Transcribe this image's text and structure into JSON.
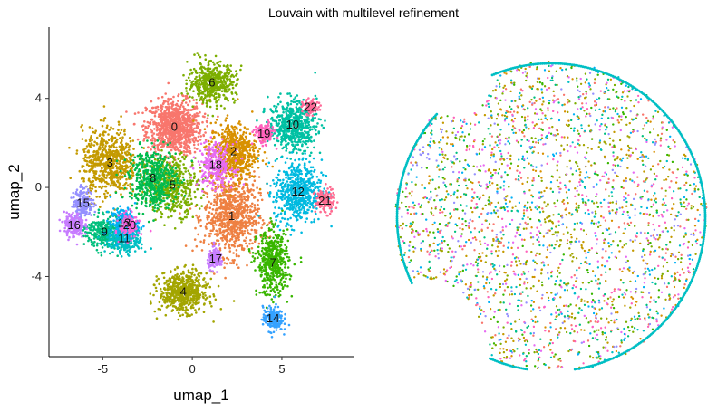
{
  "chart_data": {
    "title": "Louvain with multilevel refinement",
    "panels": [
      {
        "type": "scatter",
        "xlabel": "umap_1",
        "ylabel": "umap_2",
        "xlim": [
          -8,
          9
        ],
        "ylim": [
          -7.6,
          7.2
        ],
        "xticks": [
          -5,
          0,
          5
        ],
        "xtick_labels": [
          "-5",
          "0",
          "5"
        ],
        "yticks": [
          -4,
          0,
          4
        ],
        "ytick_labels": [
          "-4",
          "0",
          "4"
        ],
        "grid": false,
        "legend": "none",
        "clusters": [
          {
            "label": "0",
            "x": -1.0,
            "y": 2.7,
            "sx": 1.4,
            "sy": 1.1,
            "color": "#F8766D",
            "n": 900
          },
          {
            "label": "1",
            "x": 2.2,
            "y": -1.3,
            "sx": 1.4,
            "sy": 1.6,
            "color": "#EE8042",
            "n": 800
          },
          {
            "label": "2",
            "x": 2.3,
            "y": 1.6,
            "sx": 1.2,
            "sy": 1.2,
            "color": "#D89000",
            "n": 600
          },
          {
            "label": "3",
            "x": -4.6,
            "y": 1.1,
            "sx": 1.4,
            "sy": 1.4,
            "color": "#C49A00",
            "n": 650
          },
          {
            "label": "4",
            "x": -0.5,
            "y": -4.7,
            "sx": 1.2,
            "sy": 0.8,
            "color": "#A3A500",
            "n": 600
          },
          {
            "label": "5",
            "x": -1.1,
            "y": 0.1,
            "sx": 1.3,
            "sy": 1.2,
            "color": "#7CAE00",
            "n": 450
          },
          {
            "label": "6",
            "x": 1.1,
            "y": 4.7,
            "sx": 1.2,
            "sy": 0.8,
            "color": "#7CAE00",
            "n": 500
          },
          {
            "label": "7",
            "x": 4.5,
            "y": -3.4,
            "sx": 0.8,
            "sy": 1.3,
            "color": "#39B600",
            "n": 500
          },
          {
            "label": "8",
            "x": -2.2,
            "y": 0.4,
            "sx": 1.2,
            "sy": 1.2,
            "color": "#00BB4E",
            "n": 500
          },
          {
            "label": "9",
            "x": -4.9,
            "y": -2.0,
            "sx": 0.9,
            "sy": 0.7,
            "color": "#00BF7D",
            "n": 300
          },
          {
            "label": "10",
            "x": 5.6,
            "y": 2.8,
            "sx": 1.2,
            "sy": 1.0,
            "color": "#00C1A3",
            "n": 550
          },
          {
            "label": "11",
            "x": -3.8,
            "y": -2.3,
            "sx": 0.9,
            "sy": 0.6,
            "color": "#00BFC4",
            "n": 300
          },
          {
            "label": "12",
            "x": 5.9,
            "y": -0.2,
            "sx": 1.2,
            "sy": 1.3,
            "color": "#00BAE0",
            "n": 550
          },
          {
            "label": "13",
            "x": -3.8,
            "y": -1.6,
            "sx": 0.7,
            "sy": 0.6,
            "color": "#00B0F6",
            "n": 200
          },
          {
            "label": "14",
            "x": 4.5,
            "y": -5.9,
            "sx": 0.5,
            "sy": 0.5,
            "color": "#35A2FF",
            "n": 200
          },
          {
            "label": "15",
            "x": -6.1,
            "y": -0.7,
            "sx": 0.5,
            "sy": 0.6,
            "color": "#9590FF",
            "n": 200
          },
          {
            "label": "16",
            "x": -6.6,
            "y": -1.7,
            "sx": 0.5,
            "sy": 0.5,
            "color": "#C77CFF",
            "n": 200
          },
          {
            "label": "17",
            "x": 1.3,
            "y": -3.2,
            "sx": 0.4,
            "sy": 0.4,
            "color": "#C77CFF",
            "n": 120
          },
          {
            "label": "18",
            "x": 1.3,
            "y": 1.0,
            "sx": 0.9,
            "sy": 0.9,
            "color": "#E76BF3",
            "n": 250
          },
          {
            "label": "19",
            "x": 4.0,
            "y": 2.4,
            "sx": 0.5,
            "sy": 0.4,
            "color": "#FF62BC",
            "n": 150
          },
          {
            "label": "20",
            "x": -3.5,
            "y": -1.7,
            "sx": 0.5,
            "sy": 0.5,
            "color": "#FA62DB",
            "n": 120
          },
          {
            "label": "21",
            "x": 7.4,
            "y": -0.6,
            "sx": 0.5,
            "sy": 0.5,
            "color": "#FF6C91",
            "n": 120
          },
          {
            "label": "22",
            "x": 6.6,
            "y": 3.6,
            "sx": 0.4,
            "sy": 0.3,
            "color": "#FF6A98",
            "n": 80
          }
        ]
      },
      {
        "type": "scatter",
        "xlabel": "",
        "ylabel": "",
        "axes": "none",
        "legend": "none",
        "palette": [
          "#F8766D",
          "#D89000",
          "#A3A500",
          "#39B600",
          "#00BF7D",
          "#00BFC4",
          "#00B0F6",
          "#9590FF",
          "#E76BF3",
          "#FF62BC",
          "#C49A00",
          "#7CAE00"
        ]
      }
    ]
  }
}
